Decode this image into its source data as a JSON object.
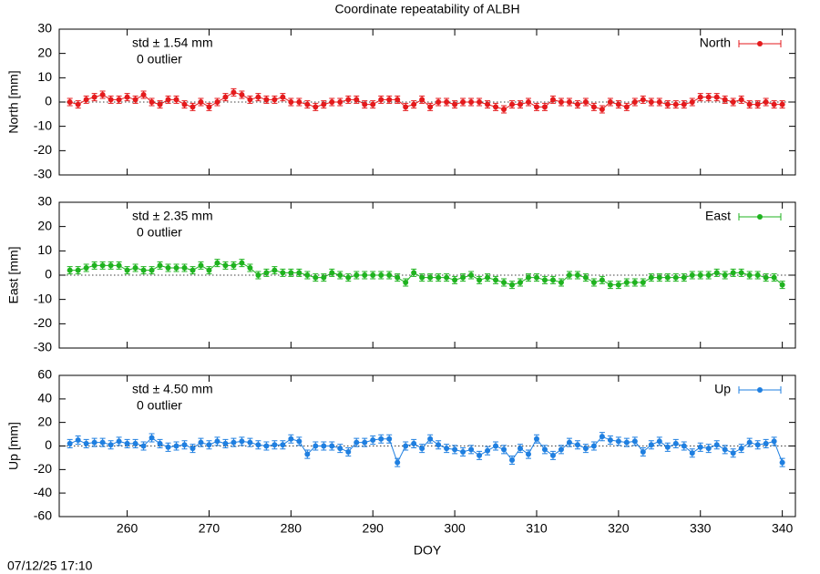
{
  "title": "Coordinate repeatability of ALBH",
  "timestamp": "07/12/25 17:10",
  "chart_data": [
    {
      "type": "line",
      "ylabel": "North [mm]",
      "annotations": [
        "std ± 1.54 mm",
        "0 outlier"
      ],
      "xlim": [
        251.7,
        341.6
      ],
      "xticks": [
        260,
        270,
        280,
        290,
        300,
        310,
        320,
        330,
        340
      ],
      "show_xtick_labels": false,
      "ylim": [
        -30,
        30
      ],
      "yticks": [
        -30,
        -20,
        -10,
        0,
        10,
        20,
        30
      ],
      "hline": 0,
      "legend": "upper right",
      "x": [
        253,
        254,
        255,
        256,
        257,
        258,
        259,
        260,
        261,
        262,
        263,
        264,
        265,
        266,
        267,
        268,
        269,
        270,
        271,
        272,
        273,
        274,
        275,
        276,
        277,
        278,
        279,
        280,
        281,
        282,
        283,
        284,
        285,
        286,
        287,
        288,
        289,
        290,
        291,
        292,
        293,
        294,
        295,
        296,
        297,
        298,
        299,
        300,
        301,
        302,
        303,
        304,
        305,
        306,
        307,
        308,
        309,
        310,
        311,
        312,
        313,
        314,
        315,
        316,
        317,
        318,
        319,
        320,
        321,
        322,
        323,
        324,
        325,
        326,
        327,
        328,
        329,
        330,
        331,
        332,
        333,
        334,
        335,
        336,
        337,
        338,
        339,
        340
      ],
      "series": [
        {
          "name": "North",
          "color": "#e41a1c",
          "error": 1.5,
          "values": [
            0,
            -1,
            1,
            2,
            3,
            1,
            1,
            2,
            1,
            3,
            0,
            -1,
            1,
            1,
            -1,
            -2,
            0,
            -2,
            0,
            2,
            4,
            3,
            1,
            2,
            1,
            1,
            2,
            0,
            0,
            -1,
            -2,
            -1,
            0,
            0,
            1,
            1,
            -1,
            -1,
            1,
            1,
            1,
            -2,
            -1,
            1,
            -2,
            0,
            0,
            -1,
            0,
            0,
            0,
            -1,
            -2,
            -3,
            -1,
            -1,
            0,
            -2,
            -2,
            1,
            0,
            0,
            -1,
            0,
            -2,
            -3,
            0,
            -1,
            -2,
            0,
            1,
            0,
            0,
            -1,
            -1,
            -1,
            0,
            2,
            2,
            2,
            1,
            0,
            1,
            -1,
            -1,
            0,
            -1,
            -1
          ]
        }
      ]
    },
    {
      "type": "line",
      "ylabel": "East [mm]",
      "annotations": [
        "std ± 2.35 mm",
        "0 outlier"
      ],
      "xlim": [
        251.7,
        341.6
      ],
      "xticks": [
        260,
        270,
        280,
        290,
        300,
        310,
        320,
        330,
        340
      ],
      "show_xtick_labels": false,
      "ylim": [
        -30,
        30
      ],
      "yticks": [
        -30,
        -20,
        -10,
        0,
        10,
        20,
        30
      ],
      "hline": 0,
      "legend": "upper right",
      "x": [
        253,
        254,
        255,
        256,
        257,
        258,
        259,
        260,
        261,
        262,
        263,
        264,
        265,
        266,
        267,
        268,
        269,
        270,
        271,
        272,
        273,
        274,
        275,
        276,
        277,
        278,
        279,
        280,
        281,
        282,
        283,
        284,
        285,
        286,
        287,
        288,
        289,
        290,
        291,
        292,
        293,
        294,
        295,
        296,
        297,
        298,
        299,
        300,
        301,
        302,
        303,
        304,
        305,
        306,
        307,
        308,
        309,
        310,
        311,
        312,
        313,
        314,
        315,
        316,
        317,
        318,
        319,
        320,
        321,
        322,
        323,
        324,
        325,
        326,
        327,
        328,
        329,
        330,
        331,
        332,
        333,
        334,
        335,
        336,
        337,
        338,
        339,
        340
      ],
      "series": [
        {
          "name": "East",
          "color": "#1fb31f",
          "error": 1.5,
          "values": [
            2,
            2,
            3,
            4,
            4,
            4,
            4,
            2,
            3,
            2,
            2,
            4,
            3,
            3,
            3,
            2,
            4,
            2,
            5,
            4,
            4,
            5,
            3,
            0,
            1,
            2,
            1,
            1,
            1,
            0,
            -1,
            -1,
            1,
            0,
            -1,
            0,
            0,
            0,
            0,
            0,
            -1,
            -3,
            1,
            -1,
            -1,
            -1,
            -1,
            -2,
            -1,
            0,
            -2,
            -1,
            -2,
            -3,
            -4,
            -3,
            -1,
            -1,
            -2,
            -2,
            -3,
            0,
            0,
            -1,
            -3,
            -2,
            -4,
            -4,
            -3,
            -3,
            -3,
            -1,
            -1,
            -1,
            -1,
            -1,
            0,
            0,
            0,
            1,
            0,
            1,
            1,
            0,
            0,
            -1,
            -1,
            -4
          ]
        }
      ]
    },
    {
      "type": "line",
      "ylabel": "Up [mm]",
      "xlabel": "DOY",
      "annotations": [
        "std ± 4.50 mm",
        "0 outlier"
      ],
      "xlim": [
        251.7,
        341.6
      ],
      "xticks": [
        260,
        270,
        280,
        290,
        300,
        310,
        320,
        330,
        340
      ],
      "show_xtick_labels": true,
      "ylim": [
        -60,
        60
      ],
      "yticks": [
        -60,
        -40,
        -20,
        0,
        20,
        40,
        60
      ],
      "hline": 0,
      "legend": "upper right",
      "x": [
        253,
        254,
        255,
        256,
        257,
        258,
        259,
        260,
        261,
        262,
        263,
        264,
        265,
        266,
        267,
        268,
        269,
        270,
        271,
        272,
        273,
        274,
        275,
        276,
        277,
        278,
        279,
        280,
        281,
        282,
        283,
        284,
        285,
        286,
        287,
        288,
        289,
        290,
        291,
        292,
        293,
        294,
        295,
        296,
        297,
        298,
        299,
        300,
        301,
        302,
        303,
        304,
        305,
        306,
        307,
        308,
        309,
        310,
        311,
        312,
        313,
        314,
        315,
        316,
        317,
        318,
        319,
        320,
        321,
        322,
        323,
        324,
        325,
        326,
        327,
        328,
        329,
        330,
        331,
        332,
        333,
        334,
        335,
        336,
        337,
        338,
        339,
        340
      ],
      "series": [
        {
          "name": "Up",
          "color": "#1f7fe0",
          "error": 3.5,
          "values": [
            2,
            5,
            2,
            3,
            3,
            1,
            4,
            2,
            2,
            0,
            7,
            2,
            -1,
            0,
            1,
            -2,
            3,
            1,
            4,
            2,
            3,
            4,
            3,
            1,
            0,
            1,
            1,
            6,
            4,
            -7,
            0,
            0,
            0,
            -2,
            -5,
            3,
            3,
            5,
            6,
            6,
            -14,
            0,
            2,
            -2,
            6,
            1,
            -2,
            -3,
            -5,
            -3,
            -8,
            -4,
            0,
            -3,
            -12,
            -2,
            -7,
            6,
            -3,
            -8,
            -3,
            3,
            1,
            -2,
            0,
            8,
            5,
            4,
            3,
            4,
            -5,
            1,
            4,
            -1,
            2,
            0,
            -6,
            -1,
            -2,
            1,
            -3,
            -6,
            -2,
            3,
            1,
            2,
            4,
            -14
          ]
        }
      ]
    }
  ]
}
